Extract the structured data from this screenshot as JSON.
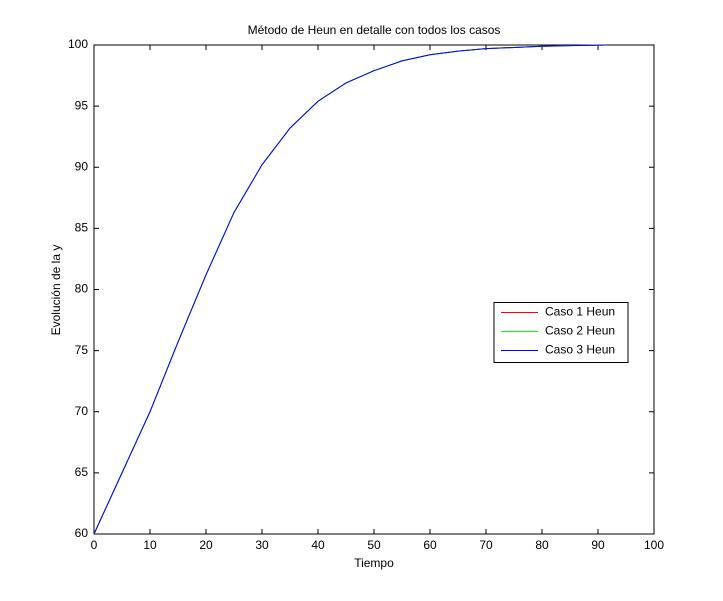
{
  "chart_data": {
    "type": "line",
    "title": "Método de Heun en detalle con todos los casos",
    "x_label": "Tiempo",
    "y_label": "Evolución de la y",
    "x": [
      0,
      5,
      10,
      15,
      20,
      25,
      30,
      35,
      40,
      45,
      50,
      55,
      60,
      65,
      70,
      75,
      80,
      85,
      91.5
    ],
    "series": [
      {
        "name": "Caso 1 Heun",
        "color": "#ff0000",
        "values": [
          60,
          65,
          70,
          75.7,
          81.2,
          86.3,
          90.2,
          93.2,
          95.4,
          96.9,
          97.9,
          98.7,
          99.2,
          99.5,
          99.7,
          99.8,
          99.9,
          99.95,
          100
        ]
      },
      {
        "name": "Caso 2 Heun",
        "color": "#00ff00",
        "values": [
          60,
          65,
          70,
          75.7,
          81.2,
          86.3,
          90.2,
          93.2,
          95.4,
          96.9,
          97.9,
          98.7,
          99.2,
          99.5,
          99.7,
          99.8,
          99.9,
          99.95,
          100
        ]
      },
      {
        "name": "Caso 3 Heun",
        "color": "#0000ff",
        "values": [
          60,
          65,
          70,
          75.7,
          81.2,
          86.3,
          90.2,
          93.2,
          95.4,
          96.9,
          97.9,
          98.7,
          99.2,
          99.5,
          99.7,
          99.8,
          99.9,
          99.95,
          100
        ]
      }
    ],
    "xlim": [
      0,
      100
    ],
    "xticks": [
      0,
      10,
      20,
      30,
      40,
      50,
      60,
      70,
      80,
      90,
      100
    ],
    "ylim": [
      60,
      100
    ],
    "yticks": [
      60,
      65,
      70,
      75,
      80,
      85,
      90,
      95,
      100
    ],
    "grid": false,
    "legend_position": "right"
  }
}
